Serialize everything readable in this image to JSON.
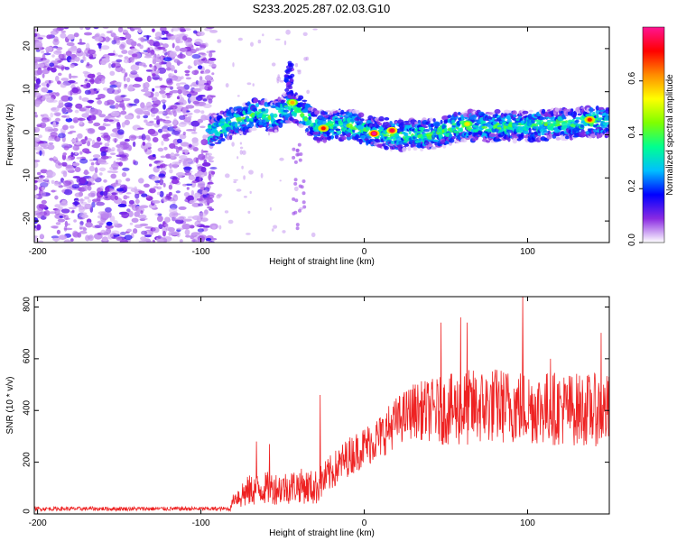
{
  "title": "S233.2025.287.02.03.G10",
  "chart_data": [
    {
      "type": "heatmap",
      "xlabel": "Height of straight line (km)",
      "ylabel": "Frequency (Hz)",
      "xlim": [
        -202,
        150
      ],
      "ylim": [
        -25,
        25
      ],
      "x_ticks": [
        -200,
        -100,
        0,
        100
      ],
      "y_ticks": [
        -20,
        -10,
        0,
        10,
        20
      ],
      "colorbar": {
        "label": "Normalized spectral amplitude",
        "range": [
          0.0,
          0.8
        ],
        "ticks": [
          "0.0",
          "0.2",
          "0.4",
          "0.6"
        ],
        "stops": [
          "#ffffff",
          "#8a2be2",
          "#0000ff",
          "#00bfff",
          "#00ff90",
          "#7fff00",
          "#ffff00",
          "#ff8c00",
          "#ff0000",
          "#ff1493"
        ]
      },
      "noise_region_x": [
        -202,
        -92
      ],
      "signal_band": [
        {
          "x": -95,
          "f": 0.5
        },
        {
          "x": -80,
          "f": 3
        },
        {
          "x": -65,
          "f": 5
        },
        {
          "x": -55,
          "f": 4
        },
        {
          "x": -45,
          "f": 7
        },
        {
          "x": -38,
          "f": 5
        },
        {
          "x": -28,
          "f": 2
        },
        {
          "x": -18,
          "f": 2
        },
        {
          "x": -5,
          "f": 2
        },
        {
          "x": 5,
          "f": 0.5
        },
        {
          "x": 20,
          "f": 0
        },
        {
          "x": 40,
          "f": 0
        },
        {
          "x": 60,
          "f": 2
        },
        {
          "x": 80,
          "f": 2
        },
        {
          "x": 100,
          "f": 2
        },
        {
          "x": 120,
          "f": 2.5
        },
        {
          "x": 140,
          "f": 3
        },
        {
          "x": 150,
          "f": 3
        }
      ],
      "hotspots": [
        {
          "x": 6,
          "f": 0.3,
          "amp": 0.8
        },
        {
          "x": 17,
          "f": 1,
          "amp": 0.75
        },
        {
          "x": -25,
          "f": 1.5,
          "amp": 0.7
        },
        {
          "x": -44,
          "f": 7.5,
          "amp": 0.6
        },
        {
          "x": 138,
          "f": 3.5,
          "amp": 0.7
        },
        {
          "x": 63,
          "f": 2.5,
          "amp": 0.55
        }
      ]
    },
    {
      "type": "line",
      "xlabel": "Height of straight line (km)",
      "ylabel": "SNR (10 * v/v)",
      "xlim": [
        -202,
        150
      ],
      "ylim": [
        0,
        840
      ],
      "x_ticks": [
        -200,
        -100,
        0,
        100
      ],
      "y_ticks": [
        0,
        200,
        400,
        600,
        800
      ],
      "color": "#ee2222",
      "trend": [
        {
          "x": -202,
          "y": 20
        },
        {
          "x": -82,
          "y": 20
        },
        {
          "x": -80,
          "y": 60
        },
        {
          "x": -70,
          "y": 90
        },
        {
          "x": -60,
          "y": 100
        },
        {
          "x": -50,
          "y": 100
        },
        {
          "x": -40,
          "y": 110
        },
        {
          "x": -30,
          "y": 100
        },
        {
          "x": -20,
          "y": 160
        },
        {
          "x": -10,
          "y": 220
        },
        {
          "x": 0,
          "y": 260
        },
        {
          "x": 10,
          "y": 300
        },
        {
          "x": 20,
          "y": 360
        },
        {
          "x": 30,
          "y": 400
        },
        {
          "x": 50,
          "y": 400
        },
        {
          "x": 80,
          "y": 420
        },
        {
          "x": 110,
          "y": 410
        },
        {
          "x": 150,
          "y": 400
        }
      ],
      "spread": [
        {
          "x": -202,
          "y": 8
        },
        {
          "x": -82,
          "y": 8
        },
        {
          "x": -75,
          "y": 60
        },
        {
          "x": -25,
          "y": 70
        },
        {
          "x": 0,
          "y": 80
        },
        {
          "x": 25,
          "y": 100
        },
        {
          "x": 60,
          "y": 150
        },
        {
          "x": 150,
          "y": 140
        }
      ],
      "peaks": [
        {
          "x": 97,
          "y": 840
        },
        {
          "x": 59,
          "y": 760
        },
        {
          "x": 47,
          "y": 740
        },
        {
          "x": 63,
          "y": 740
        },
        {
          "x": 145,
          "y": 700
        },
        {
          "x": 114,
          "y": 600
        },
        {
          "x": -27,
          "y": 460
        },
        {
          "x": -58,
          "y": 270
        },
        {
          "x": -66,
          "y": 280
        }
      ]
    }
  ]
}
